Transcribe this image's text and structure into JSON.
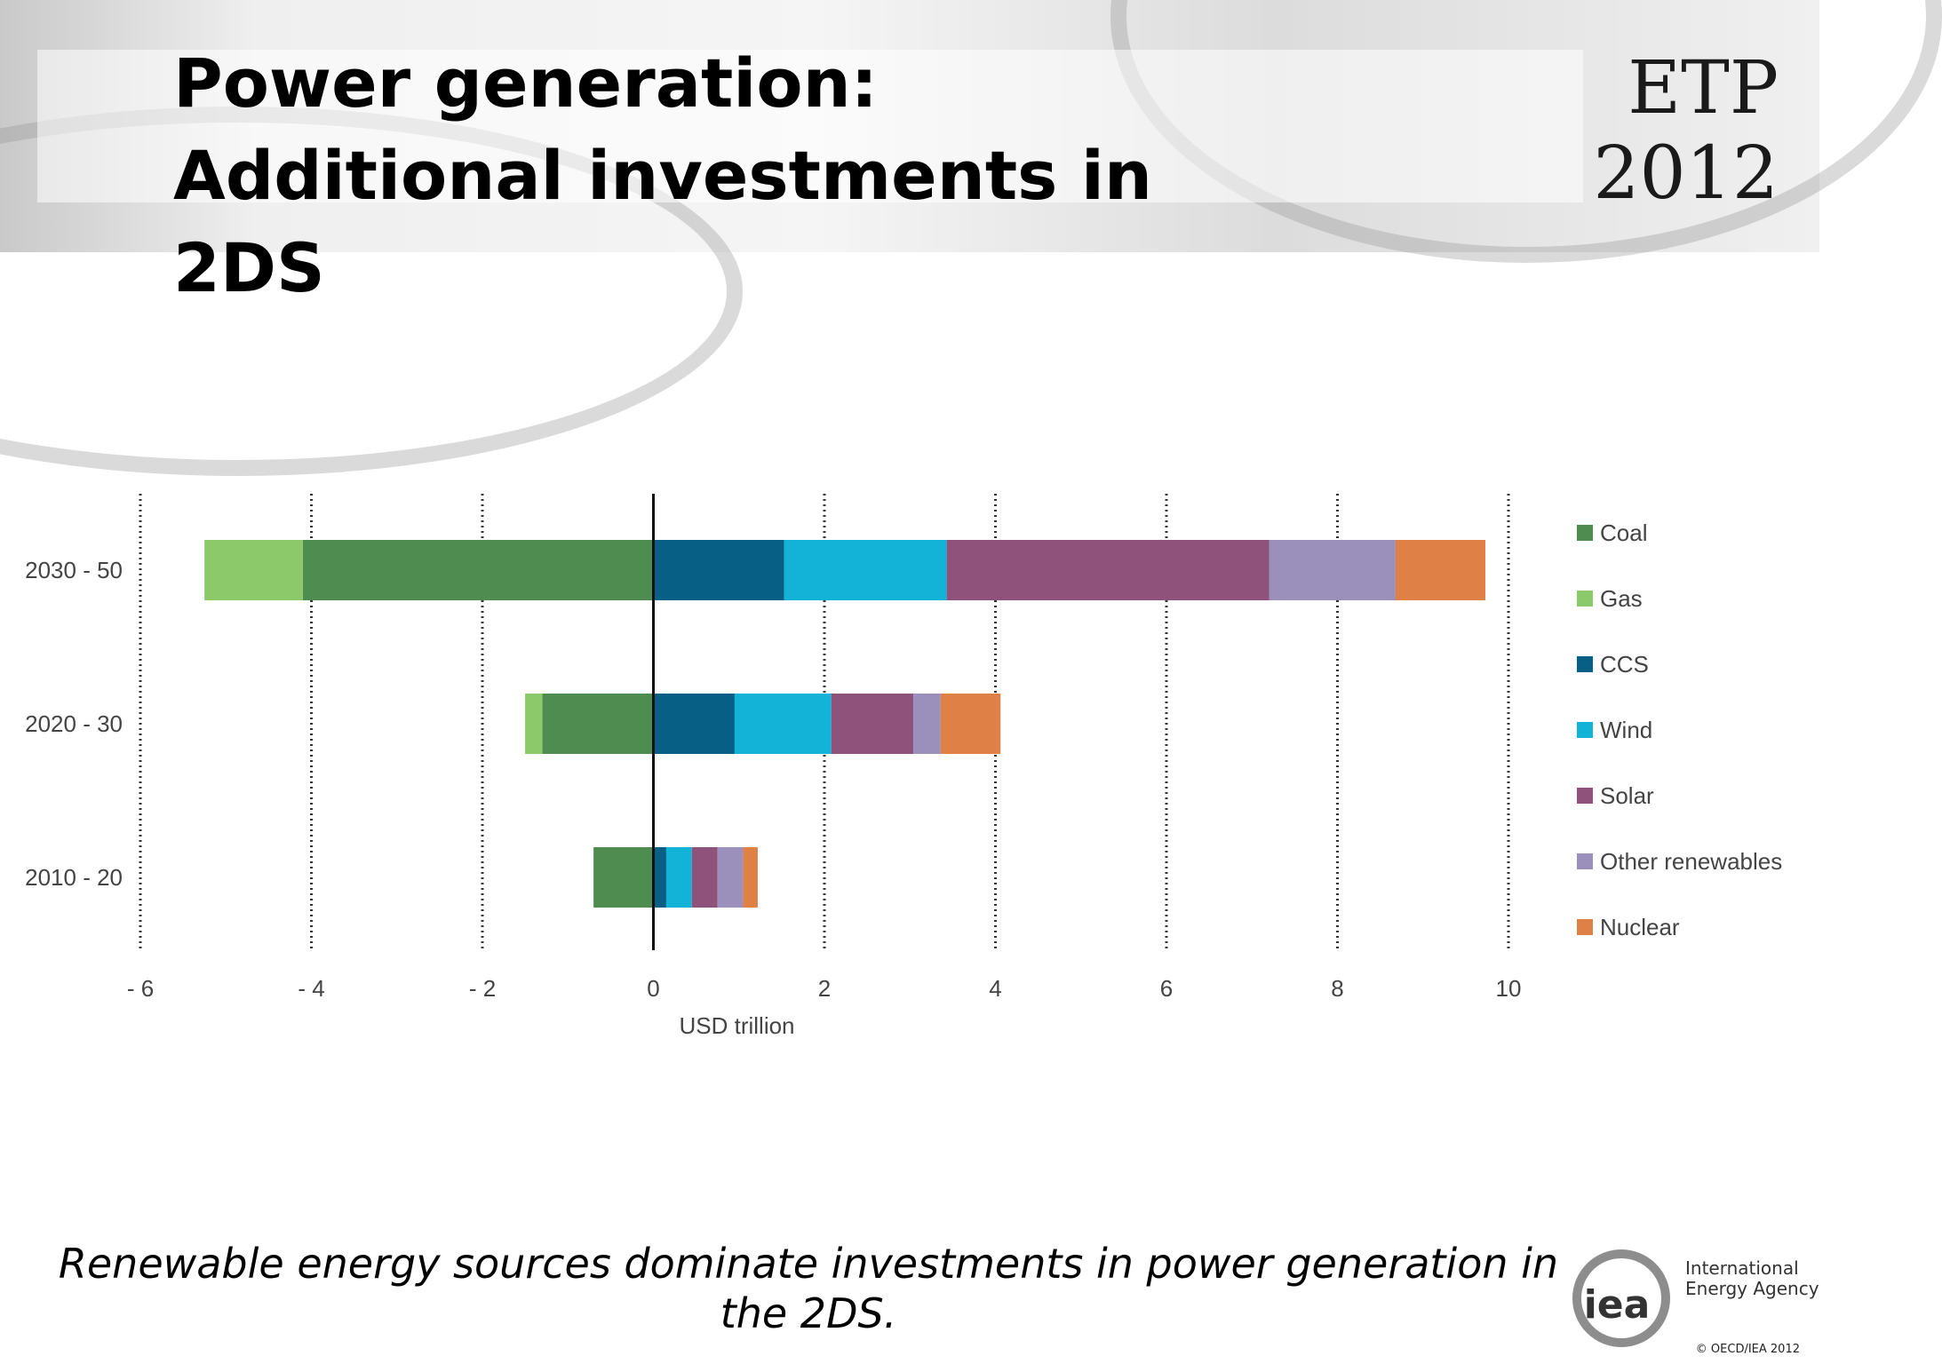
{
  "slide": {
    "title": "Power generation: Additional investments in 2DS",
    "brand_line1": "ETP",
    "brand_line2": "2012",
    "caption": "Renewable energy sources dominate investments in power generation in the 2DS.",
    "logo_text_line1": "International",
    "logo_text_line2": "Energy Agency",
    "logo_mark": "iea",
    "copyright": "© OECD/IEA 2012"
  },
  "chart_data": {
    "type": "bar",
    "orientation": "horizontal",
    "stacked": true,
    "categories": [
      "2030 - 50",
      "2020 - 30",
      "2010 - 20"
    ],
    "series": [
      {
        "name": "Coal",
        "color": "#4f8c50",
        "values": [
          -4.1,
          -1.3,
          -0.7
        ]
      },
      {
        "name": "Gas",
        "color": "#8bc96a",
        "values": [
          -1.15,
          -0.2,
          0
        ]
      },
      {
        "name": "CCS",
        "color": "#075f86",
        "values": [
          1.53,
          0.95,
          0.15
        ]
      },
      {
        "name": "Wind",
        "color": "#13b3d8",
        "values": [
          1.9,
          1.13,
          0.3
        ]
      },
      {
        "name": "Solar",
        "color": "#8f527b",
        "values": [
          3.77,
          0.96,
          0.3
        ]
      },
      {
        "name": "Other renewables",
        "color": "#9b8fbc",
        "values": [
          1.48,
          0.32,
          0.3
        ]
      },
      {
        "name": "Nuclear",
        "color": "#df8146",
        "values": [
          1.05,
          0.7,
          0.17
        ]
      }
    ],
    "xlabel": "USD trillion",
    "xlim": [
      -6,
      10
    ],
    "xticks": [
      -6,
      -4,
      -2,
      0,
      2,
      4,
      6,
      8,
      10
    ],
    "xtick_labels": [
      "- 6",
      "- 4",
      "- 2",
      "0",
      "2",
      "4",
      "6",
      "8",
      "10"
    ],
    "grid": "vertical dotted",
    "legend_position": "right"
  }
}
